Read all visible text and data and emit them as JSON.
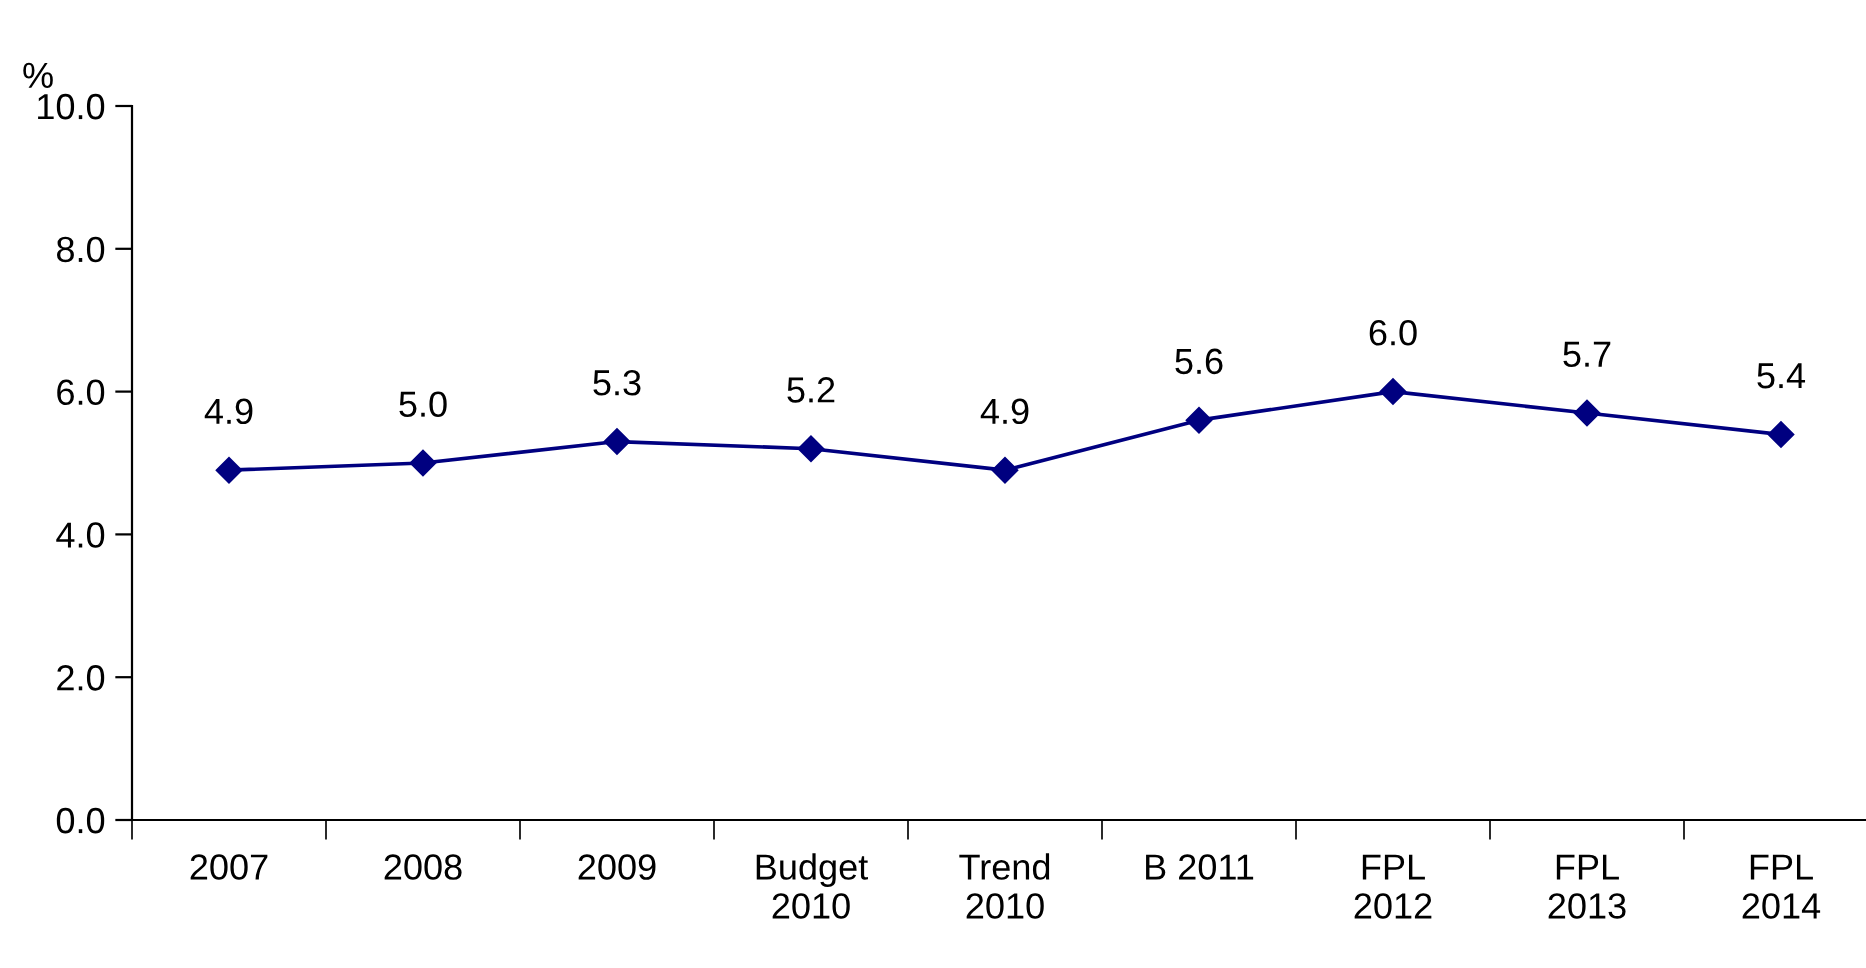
{
  "chart_data": {
    "type": "line",
    "ylabel": "%",
    "categories": [
      "2007",
      "2008",
      "2009",
      "Budget\n2010",
      "Trend\n2010",
      "B 2011",
      "FPL\n2012",
      "FPL\n2013",
      "FPL\n2014"
    ],
    "series": [
      {
        "color": "#000080",
        "values": [
          4.9,
          5.0,
          5.3,
          5.2,
          4.9,
          5.6,
          6.0,
          5.7,
          5.4
        ],
        "value_labels": [
          "4.9",
          "5.0",
          "5.3",
          "5.2",
          "4.9",
          "5.6",
          "6.0",
          "5.7",
          "5.4"
        ]
      }
    ],
    "ylim": [
      0,
      10
    ],
    "yticks": [
      {
        "value": 0,
        "label": "0.0"
      },
      {
        "value": 2,
        "label": "2.0"
      },
      {
        "value": 4,
        "label": "4.0"
      },
      {
        "value": 6,
        "label": "6.0"
      },
      {
        "value": 8,
        "label": "8.0"
      },
      {
        "value": 10,
        "label": "10.0"
      }
    ],
    "marker": "diamond",
    "line_style": "solid",
    "grid": false,
    "legend": false
  }
}
